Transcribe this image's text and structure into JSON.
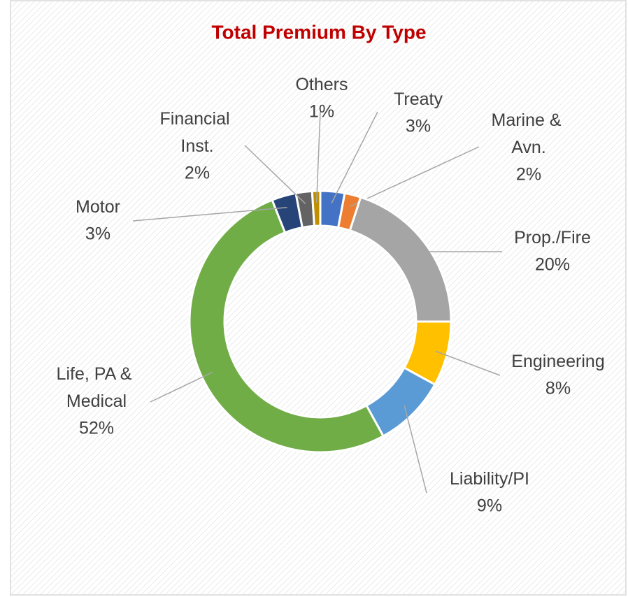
{
  "chart_data": {
    "type": "donut",
    "title": "Total Premium By Type",
    "categories": [
      "Treaty",
      "Marine & Avn.",
      "Prop./Fire",
      "Engineering",
      "Liability/PI",
      "Life, PA & Medical",
      "Motor",
      "Financial Inst.",
      "Others"
    ],
    "values": [
      3,
      2,
      20,
      8,
      9,
      52,
      3,
      2,
      1
    ],
    "value_labels": [
      "3%",
      "2%",
      "20%",
      "8%",
      "9%",
      "52%",
      "3%",
      "2%",
      "1%"
    ],
    "colors": [
      "#4472c4",
      "#ed7d31",
      "#a5a5a5",
      "#ffc000",
      "#5b9bd5",
      "#70ad47",
      "#264478",
      "#636363",
      "#bf9000"
    ]
  }
}
